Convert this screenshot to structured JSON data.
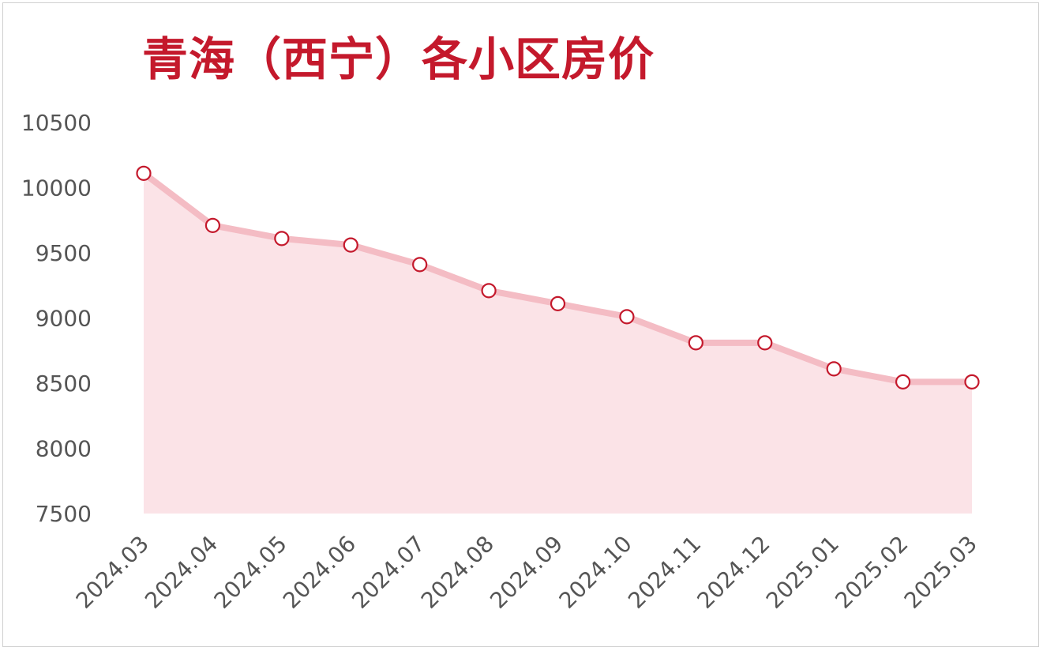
{
  "chart_data": {
    "type": "area",
    "title": "青海（西宁）各小区房价",
    "categories": [
      "2024.03",
      "2024.04",
      "2024.05",
      "2024.06",
      "2024.07",
      "2024.08",
      "2024.09",
      "2024.10",
      "2024.11",
      "2024.12",
      "2025.01",
      "2025.02",
      "2025.03"
    ],
    "series": [
      {
        "values": [
          10110,
          9710,
          9610,
          9560,
          9410,
          9210,
          9110,
          9010,
          8810,
          8810,
          8610,
          8510,
          8510
        ]
      }
    ],
    "y_ticks": [
      "10500",
      "10000",
      "9500",
      "9000",
      "8500",
      "8000",
      "7500"
    ],
    "ylim": [
      7500,
      10500
    ],
    "grid": false,
    "legend": "none",
    "colors": {
      "title": "#c4192c",
      "line": "#f4bcc4",
      "area": "#fbe3e7",
      "marker_stroke": "#c4192c",
      "marker_fill": "#ffffff",
      "tick_text": "#555555"
    }
  }
}
